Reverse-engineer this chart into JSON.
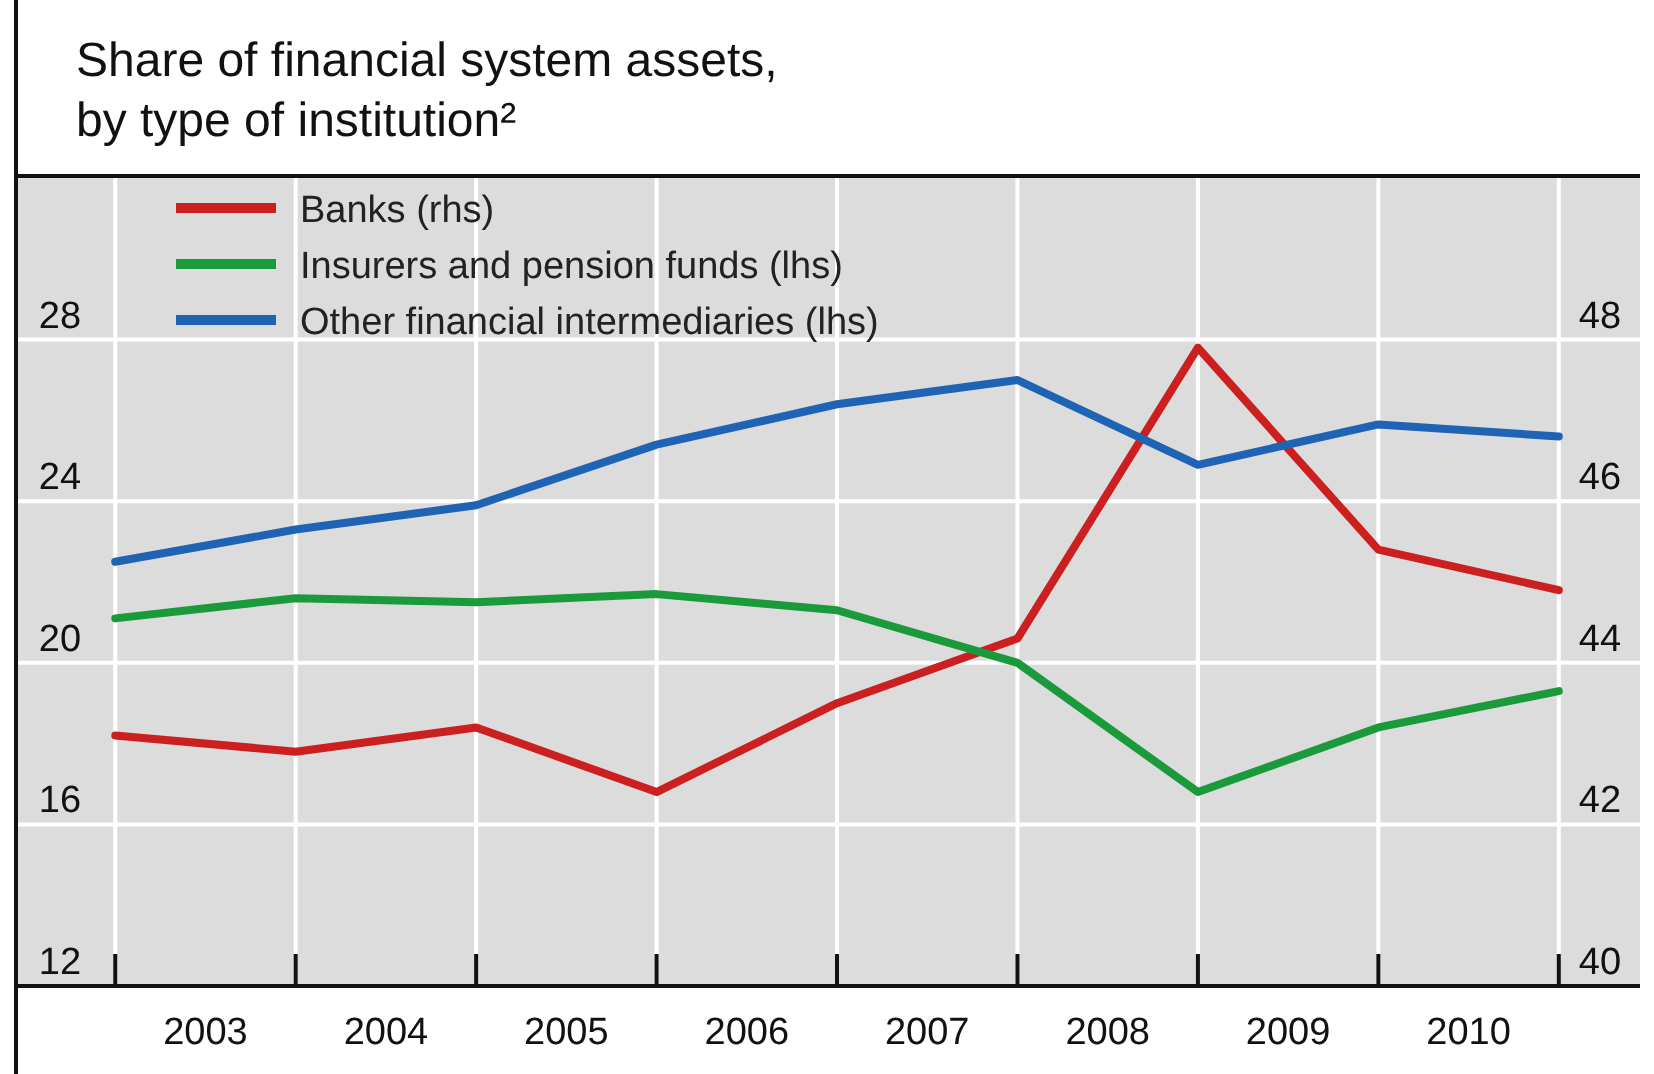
{
  "chart_data": {
    "type": "line",
    "title": "Share of financial system assets, by type of institution²",
    "x": [
      2003,
      2004,
      2005,
      2006,
      2007,
      2008,
      2009,
      2010,
      2011
    ],
    "xlim": [
      2002.45,
      2011.45
    ],
    "xticks": [
      {
        "value": 2003,
        "label": null
      },
      {
        "value": 2003.5,
        "label": "2003"
      },
      {
        "value": 2004,
        "label": null
      },
      {
        "value": 2004.5,
        "label": "2004"
      },
      {
        "value": 2005,
        "label": null
      },
      {
        "value": 2005.5,
        "label": "2005"
      },
      {
        "value": 2006,
        "label": null
      },
      {
        "value": 2006.5,
        "label": "2006"
      },
      {
        "value": 2007,
        "label": null
      },
      {
        "value": 2007.5,
        "label": "2007"
      },
      {
        "value": 2008,
        "label": null
      },
      {
        "value": 2008.5,
        "label": "2008"
      },
      {
        "value": 2009,
        "label": null
      },
      {
        "value": 2009.5,
        "label": "2009"
      },
      {
        "value": 2010,
        "label": null
      },
      {
        "value": 2010.5,
        "label": "2010"
      },
      {
        "value": 2011,
        "label": null
      }
    ],
    "ylim": [
      12,
      32
    ],
    "yticks": [
      12,
      16,
      20,
      24,
      28
    ],
    "y2lim": [
      40,
      50
    ],
    "y2ticks": [
      40,
      42,
      44,
      46,
      48
    ],
    "grid": true,
    "legend": "top left",
    "line_style": "solid",
    "series": [
      {
        "name": "Banks (rhs)",
        "color": "#cc1f1f",
        "axis": "y2",
        "values": [
          43.1,
          42.9,
          43.2,
          42.4,
          43.5,
          44.3,
          47.9,
          45.4,
          44.9
        ]
      },
      {
        "name": "Insurers and pension funds (lhs)",
        "color": "#1a9a3a",
        "values": [
          21.1,
          21.6,
          21.5,
          21.7,
          21.3,
          20.0,
          16.8,
          18.4,
          19.3
        ]
      },
      {
        "name": "Other financial intermediaries (lhs)",
        "color": "#1f64b4",
        "values": [
          22.5,
          23.3,
          23.9,
          25.4,
          26.4,
          27.0,
          24.9,
          25.9,
          25.6
        ]
      }
    ]
  }
}
